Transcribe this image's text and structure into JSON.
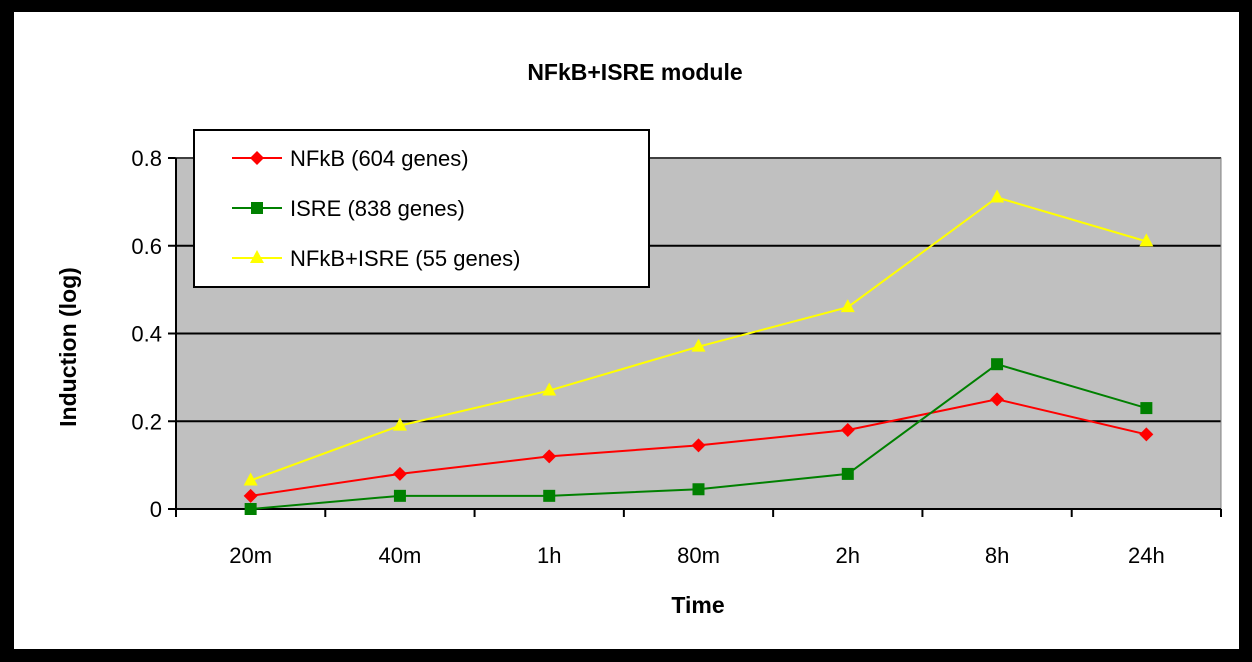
{
  "chart_data": {
    "type": "line",
    "title": "NFkB+ISRE module",
    "xlabel": "Time",
    "ylabel": "Induction (log)",
    "categories": [
      "20m",
      "40m",
      "1h",
      "80m",
      "2h",
      "8h",
      "24h"
    ],
    "ylim": [
      0,
      0.8
    ],
    "yticks": [
      0,
      0.2,
      0.4,
      0.6,
      0.8
    ],
    "ytick_labels": [
      "0",
      "0.2",
      "0.4",
      "0.6",
      "0.8"
    ],
    "grid": true,
    "legend_position": "top-left",
    "plot_background": "#c0c0c0",
    "series": [
      {
        "name": "NFkB (604 genes)",
        "color": "#ff0000",
        "marker": "diamond",
        "values": [
          0.03,
          0.08,
          0.12,
          0.145,
          0.18,
          0.25,
          0.17
        ]
      },
      {
        "name": "ISRE (838 genes)",
        "color": "#008000",
        "marker": "square",
        "values": [
          0.0,
          0.03,
          0.03,
          0.045,
          0.08,
          0.33,
          0.23
        ]
      },
      {
        "name": "NFkB+ISRE (55 genes)",
        "color": "#ffff00",
        "marker": "triangle",
        "values": [
          0.065,
          0.19,
          0.27,
          0.37,
          0.46,
          0.71,
          0.61
        ]
      }
    ]
  }
}
